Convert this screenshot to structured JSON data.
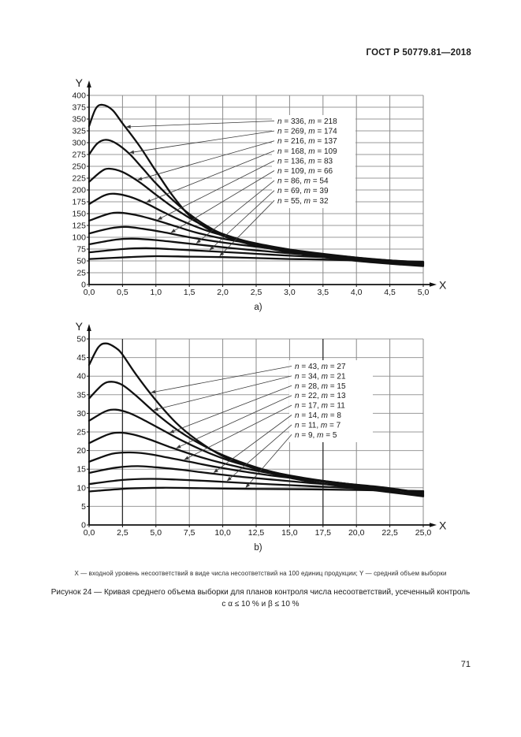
{
  "page": {
    "header": "ГОСТ Р 50779.81—2018",
    "number": "71",
    "caption_note": "X — входной уровень несоответствий в виде числа несоответствий на 100 единиц продукции; Y — средний объем выборки",
    "figure_caption_line1": "Рисунок 24 — Кривая среднего объема выборки для планов контроля числа несоответствий, усеченный контроль",
    "figure_caption_line2": "с α ≤ 10 % и β ≤ 10 %"
  },
  "colors": {
    "text": "#1a1a1a",
    "curve": "#111111",
    "axis": "#111111",
    "grid_h": "#9a9a9a",
    "grid_v": "#8a8a8a",
    "grid_dark": "#2a2a2a",
    "leader": "#3a3a3a",
    "background": "#ffffff"
  },
  "chart_data": [
    {
      "id": "a",
      "type": "line",
      "sublabel": "a)",
      "xlabel": "X",
      "ylabel": "Y",
      "xlim": [
        0,
        5
      ],
      "ylim": [
        0,
        400
      ],
      "grid": true,
      "legend_position": "upper right inside",
      "x_ticks": [
        "0,0",
        "0,5",
        "1,0",
        "1,5",
        "2,0",
        "2,5",
        "3,0",
        "3,5",
        "4,0",
        "4,5",
        "5,0"
      ],
      "y_ticks": [
        "0",
        "25",
        "50",
        "75",
        "100",
        "125",
        "150",
        "175",
        "200",
        "225",
        "250",
        "275",
        "300",
        "325",
        "350",
        "375",
        "400"
      ],
      "series": [
        {
          "name": "n = 336, m = 218",
          "n": 336,
          "m": 218,
          "points": [
            [
              0,
              335
            ],
            [
              0.1,
              372
            ],
            [
              0.2,
              380
            ],
            [
              0.35,
              369
            ],
            [
              0.5,
              341
            ],
            [
              0.75,
              294
            ],
            [
              1,
              240
            ],
            [
              1.25,
              188
            ],
            [
              1.5,
              146
            ],
            [
              1.75,
              120
            ],
            [
              2,
              103
            ],
            [
              2.25,
              91
            ],
            [
              2.5,
              82
            ],
            [
              3,
              68
            ],
            [
              3.5,
              58
            ],
            [
              4,
              50
            ],
            [
              4.5,
              44
            ],
            [
              5,
              39
            ]
          ]
        },
        {
          "name": "n = 269, m = 174",
          "n": 269,
          "m": 174,
          "points": [
            [
              0,
              275
            ],
            [
              0.12,
              298
            ],
            [
              0.25,
              306
            ],
            [
              0.4,
              299
            ],
            [
              0.6,
              277
            ],
            [
              0.8,
              246
            ],
            [
              1,
              214
            ],
            [
              1.25,
              179
            ],
            [
              1.5,
              149
            ],
            [
              1.75,
              125
            ],
            [
              2,
              107
            ],
            [
              2.5,
              85
            ],
            [
              3,
              70
            ],
            [
              3.5,
              60
            ],
            [
              4,
              52
            ],
            [
              4.5,
              46
            ],
            [
              5,
              41
            ]
          ]
        },
        {
          "name": "n = 216, m = 137",
          "n": 216,
          "m": 137,
          "points": [
            [
              0,
              217
            ],
            [
              0.18,
              239
            ],
            [
              0.3,
              245
            ],
            [
              0.5,
              238
            ],
            [
              0.75,
              217
            ],
            [
              1,
              190
            ],
            [
              1.25,
              164
            ],
            [
              1.5,
              141
            ],
            [
              1.75,
              122
            ],
            [
              2,
              107
            ],
            [
              2.5,
              86
            ],
            [
              3,
              72
            ],
            [
              3.5,
              61
            ],
            [
              4,
              53
            ],
            [
              4.5,
              47
            ],
            [
              5,
              42
            ]
          ]
        },
        {
          "name": "n = 168, m = 109",
          "n": 168,
          "m": 109,
          "points": [
            [
              0,
              170
            ],
            [
              0.22,
              188
            ],
            [
              0.38,
              192
            ],
            [
              0.6,
              186
            ],
            [
              0.85,
              172
            ],
            [
              1.1,
              154
            ],
            [
              1.4,
              134
            ],
            [
              1.7,
              117
            ],
            [
              2,
              104
            ],
            [
              2.5,
              87
            ],
            [
              3,
              74
            ],
            [
              3.5,
              63
            ],
            [
              4,
              55
            ],
            [
              4.5,
              49
            ],
            [
              5,
              43
            ]
          ]
        },
        {
          "name": "n = 136, m = 83",
          "n": 136,
          "m": 83,
          "points": [
            [
              0,
              135
            ],
            [
              0.28,
              149
            ],
            [
              0.45,
              152
            ],
            [
              0.7,
              147
            ],
            [
              1,
              136
            ],
            [
              1.3,
              123
            ],
            [
              1.6,
              110
            ],
            [
              2,
              97
            ],
            [
              2.5,
              85
            ],
            [
              3,
              74
            ],
            [
              3.5,
              65
            ],
            [
              4,
              57
            ],
            [
              4.5,
              50
            ],
            [
              5,
              44
            ]
          ]
        },
        {
          "name": "n = 109, m = 66",
          "n": 109,
          "m": 66,
          "points": [
            [
              0,
              108
            ],
            [
              0.32,
              119
            ],
            [
              0.55,
              122
            ],
            [
              0.8,
              118
            ],
            [
              1.1,
              111
            ],
            [
              1.5,
              100
            ],
            [
              2,
              89
            ],
            [
              2.5,
              80
            ],
            [
              3,
              72
            ],
            [
              3.5,
              64
            ],
            [
              4,
              57
            ],
            [
              4.5,
              51
            ],
            [
              5,
              45
            ]
          ]
        },
        {
          "name": "n = 86, m = 54",
          "n": 86,
          "m": 54,
          "points": [
            [
              0,
              85
            ],
            [
              0.4,
              95
            ],
            [
              0.65,
              97
            ],
            [
              1,
              94
            ],
            [
              1.4,
              88
            ],
            [
              1.8,
              82
            ],
            [
              2.2,
              76
            ],
            [
              2.6,
              71
            ],
            [
              3,
              66
            ],
            [
              3.5,
              61
            ],
            [
              4,
              56
            ],
            [
              4.5,
              51
            ],
            [
              5,
              46
            ]
          ]
        },
        {
          "name": "n = 69, m = 39",
          "n": 69,
          "m": 39,
          "points": [
            [
              0,
              68
            ],
            [
              0.5,
              75
            ],
            [
              0.85,
              77
            ],
            [
              1.2,
              75
            ],
            [
              1.6,
              72
            ],
            [
              2,
              69
            ],
            [
              2.5,
              65
            ],
            [
              3,
              61
            ],
            [
              3.5,
              58
            ],
            [
              4,
              54
            ],
            [
              4.5,
              51
            ],
            [
              5,
              47
            ]
          ]
        },
        {
          "name": "n = 55, m = 32",
          "n": 55,
          "m": 32,
          "points": [
            [
              0,
              54
            ],
            [
              0.6,
              58
            ],
            [
              1,
              60
            ],
            [
              1.5,
              59
            ],
            [
              2,
              58
            ],
            [
              2.5,
              56
            ],
            [
              3,
              54
            ],
            [
              3.5,
              53
            ],
            [
              4,
              51
            ],
            [
              4.5,
              50
            ],
            [
              5,
              48
            ]
          ]
        }
      ]
    },
    {
      "id": "b",
      "type": "line",
      "sublabel": "b)",
      "xlabel": "X",
      "ylabel": "Y",
      "xlim": [
        0,
        25
      ],
      "ylim": [
        0,
        50
      ],
      "grid": true,
      "legend_position": "upper right inside",
      "x_ticks": [
        "0,0",
        "2,5",
        "5,0",
        "7,5",
        "10,0",
        "12,5",
        "15,0",
        "17,5",
        "20,0",
        "22,5",
        "25,0"
      ],
      "y_ticks": [
        "0",
        "5",
        "10",
        "15",
        "20",
        "25",
        "30",
        "35",
        "40",
        "45",
        "50"
      ],
      "series": [
        {
          "name": "n = 43, m = 27",
          "n": 43,
          "m": 27,
          "points": [
            [
              0,
              43
            ],
            [
              0.7,
              47.8
            ],
            [
              1.3,
              48.8
            ],
            [
              2,
              47.6
            ],
            [
              2.5,
              45.8
            ],
            [
              3.5,
              40.5
            ],
            [
              5,
              33.5
            ],
            [
              6.5,
              27.5
            ],
            [
              8,
              23
            ],
            [
              10,
              18.5
            ],
            [
              12.5,
              15
            ],
            [
              15,
              12.7
            ],
            [
              17.5,
              11.1
            ],
            [
              20,
              9.9
            ],
            [
              22.5,
              8.8
            ],
            [
              25,
              7.7
            ]
          ]
        },
        {
          "name": "n = 34, m = 21",
          "n": 34,
          "m": 21,
          "points": [
            [
              0,
              34
            ],
            [
              1,
              37.7
            ],
            [
              1.7,
              38.5
            ],
            [
              2.5,
              37.6
            ],
            [
              3.5,
              34.8
            ],
            [
              5,
              30
            ],
            [
              6.5,
              25.8
            ],
            [
              8,
              22.4
            ],
            [
              10,
              18.8
            ],
            [
              12.5,
              15.5
            ],
            [
              15,
              13.2
            ],
            [
              17.5,
              11.6
            ],
            [
              20,
              10.3
            ],
            [
              22.5,
              9.1
            ],
            [
              25,
              7.9
            ]
          ]
        },
        {
          "name": "n = 28, m = 15",
          "n": 28,
          "m": 15,
          "points": [
            [
              0,
              28
            ],
            [
              1.2,
              30.5
            ],
            [
              2,
              31
            ],
            [
              3,
              30.1
            ],
            [
              4,
              28.4
            ],
            [
              5.5,
              25.5
            ],
            [
              7,
              22.6
            ],
            [
              9,
              19.3
            ],
            [
              11,
              16.7
            ],
            [
              13.5,
              14.4
            ],
            [
              16,
              12.7
            ],
            [
              18.5,
              11.4
            ],
            [
              21,
              10.3
            ],
            [
              23,
              9.4
            ],
            [
              25,
              8.1
            ]
          ]
        },
        {
          "name": "n = 22, m = 13",
          "n": 22,
          "m": 13,
          "points": [
            [
              0,
              22
            ],
            [
              1.4,
              24.3
            ],
            [
              2.3,
              24.8
            ],
            [
              3.3,
              24.3
            ],
            [
              4.5,
              23
            ],
            [
              6,
              21
            ],
            [
              8,
              18.6
            ],
            [
              10,
              16.6
            ],
            [
              12.5,
              14.6
            ],
            [
              15,
              13
            ],
            [
              17.5,
              11.8
            ],
            [
              20,
              10.8
            ],
            [
              22.5,
              9.7
            ],
            [
              25,
              8.3
            ]
          ]
        },
        {
          "name": "n = 17, m = 11",
          "n": 17,
          "m": 11,
          "points": [
            [
              0,
              17
            ],
            [
              1.7,
              19.1
            ],
            [
              3,
              19.5
            ],
            [
              4.2,
              19.2
            ],
            [
              5.5,
              18.4
            ],
            [
              7.5,
              17
            ],
            [
              9.5,
              15.6
            ],
            [
              12,
              14.1
            ],
            [
              14.5,
              12.9
            ],
            [
              17,
              11.9
            ],
            [
              19.5,
              11
            ],
            [
              22,
              10.1
            ],
            [
              25,
              8.6
            ]
          ]
        },
        {
          "name": "n = 14, m = 8",
          "n": 14,
          "m": 8,
          "points": [
            [
              0,
              14
            ],
            [
              2,
              15.4
            ],
            [
              3.6,
              15.8
            ],
            [
              5,
              15.5
            ],
            [
              7,
              14.8
            ],
            [
              9,
              13.9
            ],
            [
              11.5,
              12.9
            ],
            [
              14,
              12.1
            ],
            [
              16.5,
              11.3
            ],
            [
              19,
              10.6
            ],
            [
              21.5,
              9.9
            ],
            [
              25,
              8.8
            ]
          ]
        },
        {
          "name": "n = 11, m = 7",
          "n": 11,
          "m": 7,
          "points": [
            [
              0,
              11
            ],
            [
              2.5,
              12.1
            ],
            [
              4.5,
              12.4
            ],
            [
              6.5,
              12.2
            ],
            [
              9,
              11.8
            ],
            [
              12,
              11.2
            ],
            [
              15,
              10.7
            ],
            [
              18,
              10.2
            ],
            [
              21,
              9.7
            ],
            [
              25,
              9
            ]
          ]
        },
        {
          "name": "n = 9, m = 5",
          "n": 9,
          "m": 5,
          "points": [
            [
              0,
              9
            ],
            [
              3,
              9.8
            ],
            [
              5.5,
              10
            ],
            [
              8,
              9.9
            ],
            [
              12,
              9.7
            ],
            [
              16,
              9.6
            ],
            [
              20,
              9.4
            ],
            [
              25,
              9.1
            ]
          ]
        }
      ]
    }
  ]
}
